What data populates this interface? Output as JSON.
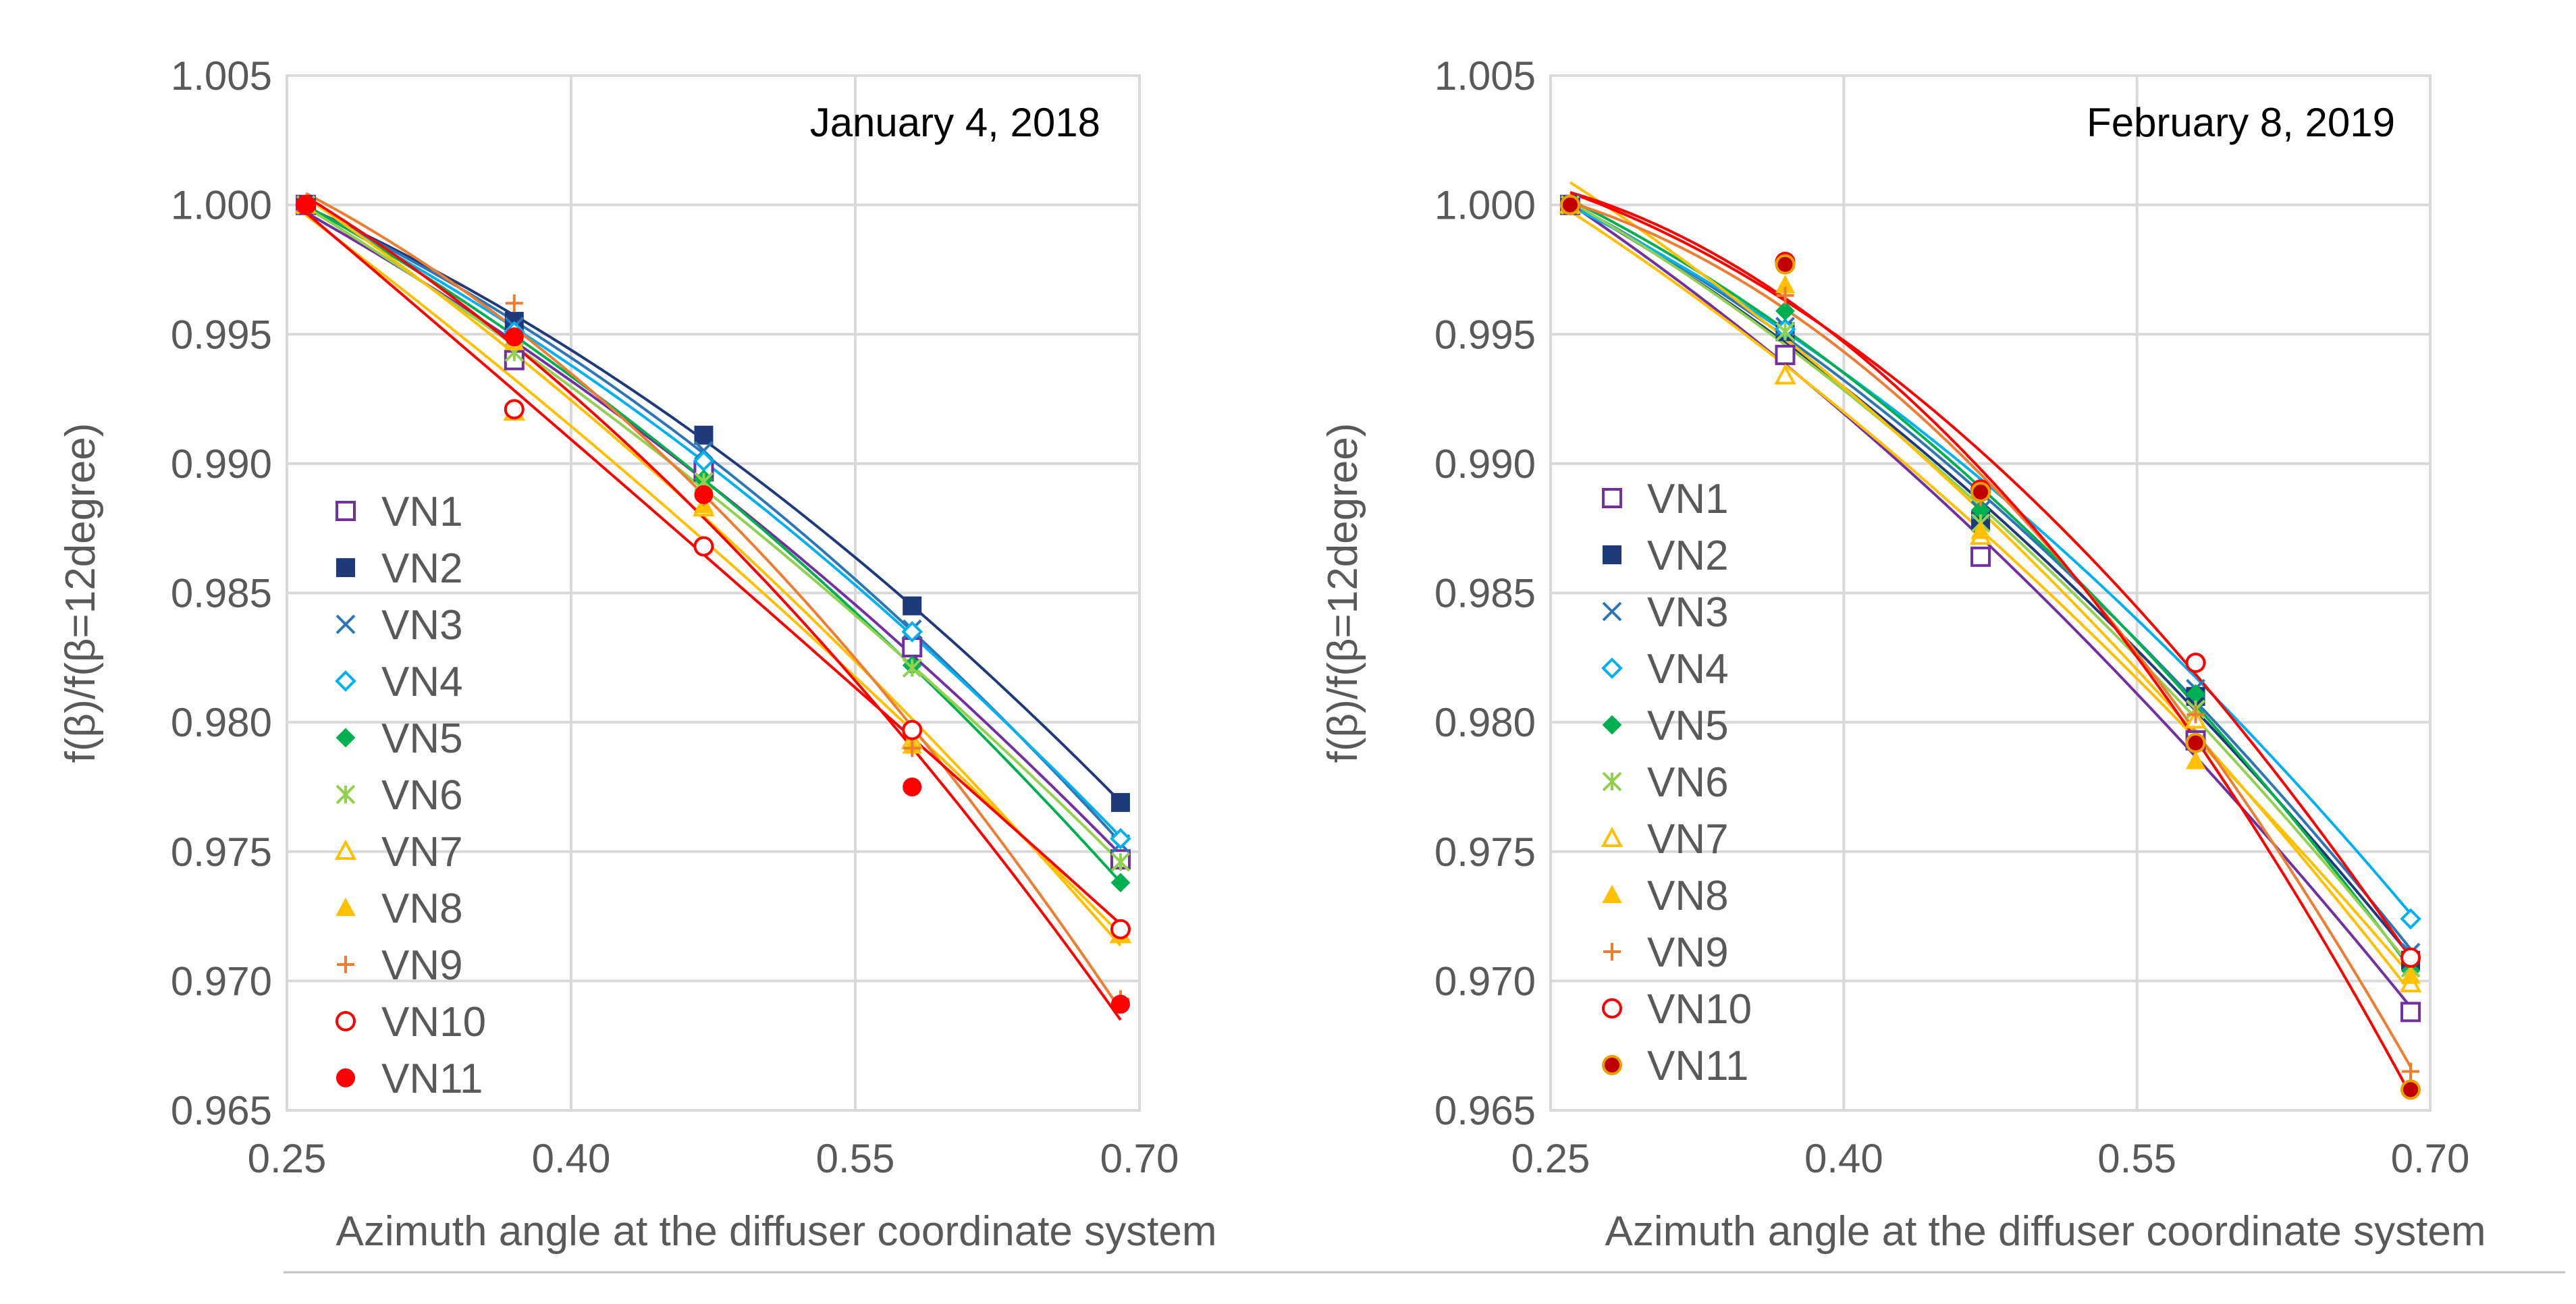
{
  "chart_data": [
    {
      "type": "scatter",
      "title": "January 4, 2018",
      "xlabel": "Azimuth angle at the diffuser coordinate system",
      "ylabel": "f(β)/f(β=12degree)",
      "xlim": [
        0.25,
        0.7
      ],
      "ylim": [
        0.965,
        1.005
      ],
      "xticks": [
        "0.25",
        "0.40",
        "0.55",
        "0.70"
      ],
      "yticks": [
        "0.965",
        "0.970",
        "0.975",
        "0.980",
        "0.985",
        "0.990",
        "0.995",
        "1.000",
        "1.005"
      ],
      "grid": true,
      "legend_position": "left",
      "x": [
        0.26,
        0.37,
        0.47,
        0.58,
        0.69
      ],
      "series": [
        {
          "name": "VN1",
          "values": [
            1.0,
            0.994,
            0.9897,
            0.9829,
            0.9747
          ],
          "marker": "square-open",
          "color": "#7030a0"
        },
        {
          "name": "VN2",
          "values": [
            1.0,
            0.9955,
            0.9911,
            0.9845,
            0.9769
          ],
          "marker": "square",
          "color": "#1f3a7a"
        },
        {
          "name": "VN3",
          "values": [
            1.0,
            0.9953,
            0.9905,
            0.9836,
            0.9753
          ],
          "marker": "x",
          "color": "#2e75b6"
        },
        {
          "name": "VN4",
          "values": [
            1.0,
            0.9951,
            0.9901,
            0.9835,
            0.9755
          ],
          "marker": "diamond-open",
          "color": "#00b0f0"
        },
        {
          "name": "VN5",
          "values": [
            1.0,
            0.9949,
            0.9894,
            0.9822,
            0.9738
          ],
          "marker": "diamond",
          "color": "#00b050"
        },
        {
          "name": "VN6",
          "values": [
            1.0,
            0.9943,
            0.9893,
            0.9821,
            0.9746
          ],
          "marker": "asterisk",
          "color": "#92d050"
        },
        {
          "name": "VN7",
          "values": [
            1.0,
            0.992,
            0.9883,
            0.9793,
            0.9718
          ],
          "marker": "triangle-open",
          "color": "#ffc000"
        },
        {
          "name": "VN8",
          "values": [
            1.0,
            0.9947,
            0.9884,
            0.9791,
            0.9718
          ],
          "marker": "triangle",
          "color": "#ffc000"
        },
        {
          "name": "VN9",
          "values": [
            1.0,
            0.9962,
            0.9887,
            0.979,
            0.9693
          ],
          "marker": "plus",
          "color": "#ed7d31"
        },
        {
          "name": "VN10",
          "values": [
            1.0,
            0.9921,
            0.9868,
            0.9797,
            0.972
          ],
          "marker": "circle-open",
          "color": "#ff0000"
        },
        {
          "name": "VN11",
          "values": [
            1.0,
            0.9949,
            0.9888,
            0.9775,
            0.9691
          ],
          "marker": "circle",
          "color": "#ff0000"
        }
      ]
    },
    {
      "type": "scatter",
      "title": "February 8, 2019",
      "xlabel": "Azimuth angle at the diffuser coordinate system",
      "ylabel": "f(β)/f(β=12degree)",
      "xlim": [
        0.25,
        0.7
      ],
      "ylim": [
        0.965,
        1.005
      ],
      "xticks": [
        "0.25",
        "0.40",
        "0.55",
        "0.70"
      ],
      "yticks": [
        "0.965",
        "0.970",
        "0.975",
        "0.980",
        "0.985",
        "0.990",
        "0.995",
        "1.000",
        "1.005"
      ],
      "grid": true,
      "legend_position": "left",
      "x": [
        0.26,
        0.37,
        0.47,
        0.58,
        0.69
      ],
      "series": [
        {
          "name": "VN1",
          "values": [
            1.0,
            0.9942,
            0.9864,
            0.9793,
            0.9688
          ],
          "marker": "square-open",
          "color": "#7030a0"
        },
        {
          "name": "VN2",
          "values": [
            1.0,
            0.9951,
            0.9878,
            0.981,
            0.9708
          ],
          "marker": "square",
          "color": "#1f3a7a"
        },
        {
          "name": "VN3",
          "values": [
            1.0,
            0.9953,
            0.9882,
            0.9813,
            0.9711
          ],
          "marker": "x",
          "color": "#2e75b6"
        },
        {
          "name": "VN4",
          "values": [
            1.0,
            0.9952,
            0.9889,
            0.9823,
            0.9724
          ],
          "marker": "diamond-open",
          "color": "#00b0f0"
        },
        {
          "name": "VN5",
          "values": [
            1.0,
            0.9959,
            0.9882,
            0.9811,
            0.9704
          ],
          "marker": "diamond",
          "color": "#00b050"
        },
        {
          "name": "VN6",
          "values": [
            1.0,
            0.9951,
            0.9877,
            0.9805,
            0.9705
          ],
          "marker": "asterisk",
          "color": "#92d050"
        },
        {
          "name": "VN7",
          "values": [
            1.0,
            0.9934,
            0.9872,
            0.9801,
            0.9699
          ],
          "marker": "triangle-open",
          "color": "#ffc000"
        },
        {
          "name": "VN8",
          "values": [
            1.0,
            0.9969,
            0.9874,
            0.9785,
            0.9702
          ],
          "marker": "triangle",
          "color": "#ffc000"
        },
        {
          "name": "VN9",
          "values": [
            1.0,
            0.9965,
            0.9887,
            0.9803,
            0.9665
          ],
          "marker": "plus",
          "color": "#ed7d31"
        },
        {
          "name": "VN10",
          "values": [
            1.0,
            0.9978,
            0.989,
            0.9823,
            0.9709
          ],
          "marker": "circle-open",
          "color": "#ff0000"
        },
        {
          "name": "VN11",
          "values": [
            1.0,
            0.9977,
            0.9889,
            0.9792,
            0.9658
          ],
          "marker": "circle-filled-edge",
          "color": "#ff0000"
        }
      ]
    }
  ]
}
